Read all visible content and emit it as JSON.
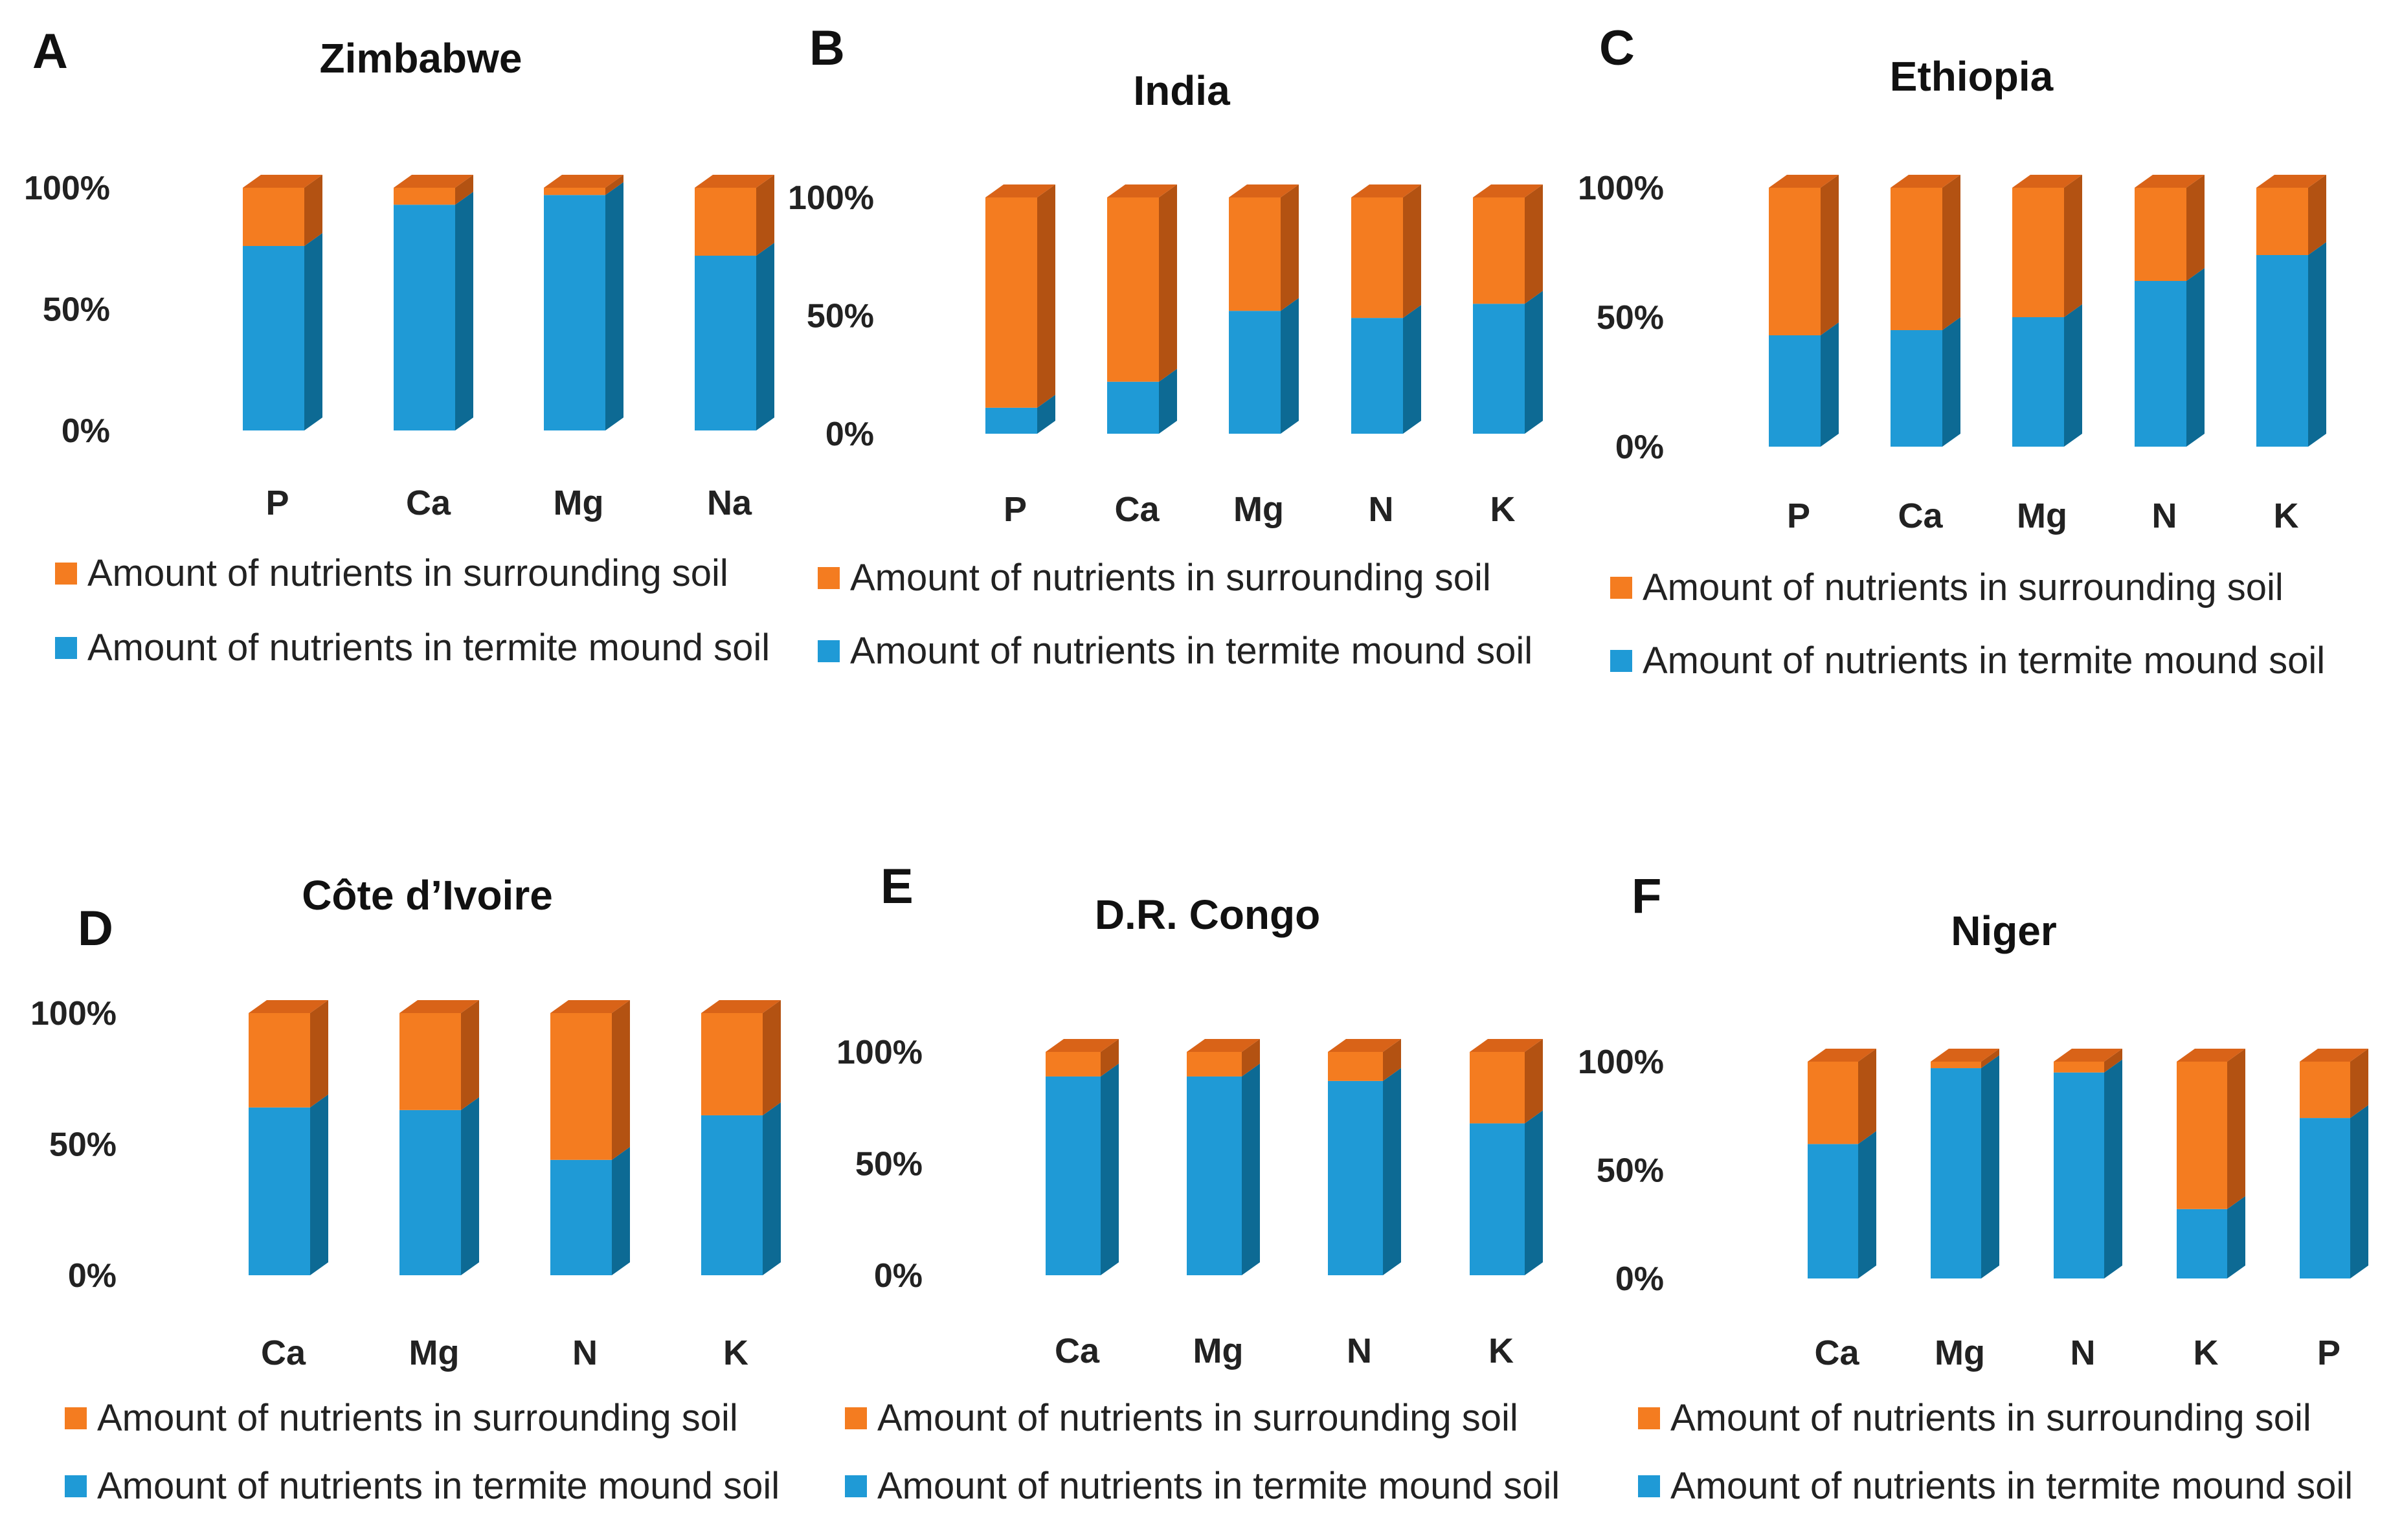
{
  "colors": {
    "termite_front": "#1f9ad6",
    "termite_side": "#0d6a94",
    "termite_top": "#4ab3e6",
    "surround_front": "#f47c20",
    "surround_side": "#b35212",
    "surround_top": "#d96318"
  },
  "legend": {
    "surrounding": "Amount of nutrients in surrounding soil",
    "termite": "Amount of nutrients in termite mound soil"
  },
  "chart_data": [
    {
      "letter": "A",
      "title": "Zimbabwe",
      "type": "bar",
      "stacked": "percent",
      "y_ticks": [
        "0%",
        "50%",
        "100%"
      ],
      "ylim": [
        0,
        100
      ],
      "categories": [
        "P",
        "Ca",
        "Mg",
        "Na"
      ],
      "series": [
        {
          "name": "Amount of nutrients in termite mound soil",
          "values": [
            76,
            93,
            97,
            72
          ]
        },
        {
          "name": "Amount of nutrients in surrounding soil",
          "values": [
            24,
            7,
            3,
            28
          ]
        }
      ]
    },
    {
      "letter": "B",
      "title": "India",
      "type": "bar",
      "stacked": "percent",
      "y_ticks": [
        "0%",
        "50%",
        "100%"
      ],
      "ylim": [
        0,
        100
      ],
      "categories": [
        "P",
        "Ca",
        "Mg",
        "N",
        "K"
      ],
      "series": [
        {
          "name": "Amount of nutrients in termite mound soil",
          "values": [
            11,
            22,
            52,
            49,
            55
          ]
        },
        {
          "name": "Amount of nutrients in surrounding soil",
          "values": [
            89,
            78,
            48,
            51,
            45
          ]
        }
      ]
    },
    {
      "letter": "C",
      "title": "Ethiopia",
      "type": "bar",
      "stacked": "percent",
      "y_ticks": [
        "0%",
        "50%",
        "100%"
      ],
      "ylim": [
        0,
        100
      ],
      "categories": [
        "P",
        "Ca",
        "Mg",
        "N",
        "K"
      ],
      "series": [
        {
          "name": "Amount of nutrients in termite mound soil",
          "values": [
            43,
            45,
            50,
            64,
            74
          ]
        },
        {
          "name": "Amount of nutrients in surrounding soil",
          "values": [
            57,
            55,
            50,
            36,
            26
          ]
        }
      ]
    },
    {
      "letter": "D",
      "title": "Côte d’Ivoire",
      "type": "bar",
      "stacked": "percent",
      "y_ticks": [
        "0%",
        "50%",
        "100%"
      ],
      "ylim": [
        0,
        100
      ],
      "categories": [
        "Ca",
        "Mg",
        "N",
        "K"
      ],
      "series": [
        {
          "name": "Amount of nutrients in termite mound soil",
          "values": [
            64,
            63,
            44,
            61
          ]
        },
        {
          "name": "Amount of nutrients in surrounding soil",
          "values": [
            36,
            37,
            56,
            39
          ]
        }
      ]
    },
    {
      "letter": "E",
      "title": "D.R. Congo",
      "type": "bar",
      "stacked": "percent",
      "y_ticks": [
        "0%",
        "50%",
        "100%"
      ],
      "ylim": [
        0,
        100
      ],
      "categories": [
        "Ca",
        "Mg",
        "N",
        "K"
      ],
      "series": [
        {
          "name": "Amount of nutrients in termite mound soil",
          "values": [
            89,
            89,
            87,
            68
          ]
        },
        {
          "name": "Amount of nutrients in surrounding soil",
          "values": [
            11,
            11,
            13,
            32
          ]
        }
      ]
    },
    {
      "letter": "F",
      "title": "Niger",
      "type": "bar",
      "stacked": "percent",
      "y_ticks": [
        "0%",
        "50%",
        "100%"
      ],
      "ylim": [
        0,
        100
      ],
      "categories": [
        "Ca",
        "Mg",
        "N",
        "K",
        "P"
      ],
      "series": [
        {
          "name": "Amount of nutrients in termite mound soil",
          "values": [
            62,
            97,
            95,
            32,
            74
          ]
        },
        {
          "name": "Amount of nutrients in surrounding soil",
          "values": [
            38,
            3,
            5,
            68,
            26
          ]
        }
      ]
    }
  ]
}
